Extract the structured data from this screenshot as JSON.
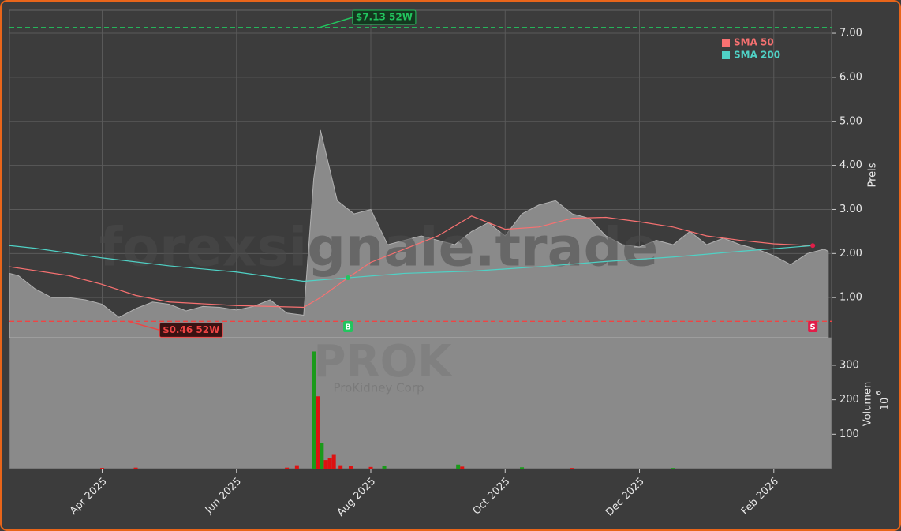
{
  "chart_data": {
    "type": "stock",
    "watermark": "forexsignale.trade",
    "symbol": "PROK",
    "company": "ProKidney Corp",
    "ylabel": "Preis",
    "y2label": "Volumen",
    "y2unit": "10",
    "y2exp": "6",
    "xlim": [
      1.62,
      13.86
    ],
    "xticks": [
      {
        "value": 3,
        "label": "Apr 2025"
      },
      {
        "value": 5,
        "label": "Jun 2025"
      },
      {
        "value": 7,
        "label": "Aug 2025"
      },
      {
        "value": 9,
        "label": "Oct 2025"
      },
      {
        "value": 11,
        "label": "Dec 2025"
      },
      {
        "value": 13,
        "label": "Feb 2026"
      }
    ],
    "ylim": [
      0.09,
      7.52
    ],
    "yticks": [
      {
        "value": 1,
        "label": "1.00"
      },
      {
        "value": 2,
        "label": "2.00"
      },
      {
        "value": 3,
        "label": "3.00"
      },
      {
        "value": 4,
        "label": "4.00"
      },
      {
        "value": 5,
        "label": "5.00"
      },
      {
        "value": 6,
        "label": "6.00"
      },
      {
        "value": 7,
        "label": "7.00"
      }
    ],
    "y2lim": [
      0,
      380
    ],
    "y2ticks": [
      100,
      200,
      300
    ],
    "grid": true,
    "price": {
      "color": "#8a8a8a",
      "x": [
        1.62,
        1.75,
        2.0,
        2.25,
        2.5,
        2.75,
        3.0,
        3.25,
        3.5,
        3.75,
        4.0,
        4.25,
        4.5,
        4.75,
        5.0,
        5.25,
        5.5,
        5.75,
        6.0,
        6.15,
        6.25,
        6.5,
        6.75,
        7.0,
        7.25,
        7.5,
        7.75,
        8.0,
        8.25,
        8.5,
        8.75,
        9.0,
        9.25,
        9.5,
        9.75,
        10.0,
        10.25,
        10.5,
        10.75,
        11.0,
        11.25,
        11.5,
        11.75,
        12.0,
        12.25,
        12.5,
        12.75,
        13.0,
        13.25,
        13.5,
        13.75,
        13.81
      ],
      "values": [
        1.55,
        1.5,
        1.2,
        1.0,
        1.0,
        0.95,
        0.85,
        0.55,
        0.75,
        0.9,
        0.85,
        0.7,
        0.8,
        0.78,
        0.72,
        0.8,
        0.95,
        0.65,
        0.6,
        3.7,
        4.8,
        3.2,
        2.9,
        3.0,
        2.2,
        2.3,
        2.4,
        2.3,
        2.2,
        2.5,
        2.7,
        2.4,
        2.9,
        3.1,
        3.2,
        2.9,
        2.8,
        2.4,
        2.2,
        2.15,
        2.3,
        2.2,
        2.5,
        2.2,
        2.35,
        2.2,
        2.1,
        1.95,
        1.75,
        2.0,
        2.1,
        2.05
      ]
    },
    "series": [
      {
        "name": "SMA 50",
        "color": "#f87171",
        "x": [
          1.62,
          2.5,
          3.0,
          3.5,
          4.0,
          5.0,
          6.0,
          6.25,
          6.66,
          7.0,
          7.5,
          8.0,
          8.5,
          9.0,
          9.5,
          10.0,
          10.5,
          11.0,
          11.5,
          12.0,
          12.5,
          13.0,
          13.58
        ],
        "values": [
          1.7,
          1.5,
          1.3,
          1.05,
          0.9,
          0.82,
          0.78,
          1.0,
          1.45,
          1.8,
          2.1,
          2.4,
          2.85,
          2.55,
          2.6,
          2.8,
          2.82,
          2.72,
          2.6,
          2.4,
          2.3,
          2.22,
          2.18
        ]
      },
      {
        "name": "SMA 200",
        "color": "#4fd1c5",
        "x": [
          1.62,
          2.0,
          3.0,
          4.0,
          5.0,
          6.0,
          6.66,
          7.5,
          8.5,
          9.5,
          10.5,
          11.5,
          12.5,
          13.58
        ],
        "values": [
          2.18,
          2.12,
          1.9,
          1.72,
          1.58,
          1.37,
          1.45,
          1.55,
          1.6,
          1.7,
          1.82,
          1.92,
          2.05,
          2.18
        ]
      }
    ],
    "annotations": [
      {
        "label": "$7.13 52W",
        "value": 7.13,
        "x": 6.2,
        "color": "#22c55e"
      },
      {
        "label": "$0.46 52W",
        "value": 0.46,
        "x": 3.35,
        "color": "#ef4444"
      }
    ],
    "signals": [
      {
        "label": "B",
        "x": 6.66,
        "value": 1.45,
        "color": "#22c55e"
      },
      {
        "label": "S",
        "x": 13.58,
        "value": 2.18,
        "color": "#e11d48"
      }
    ],
    "volume": {
      "x": [
        3.0,
        3.5,
        5.75,
        5.9,
        6.15,
        6.21,
        6.27,
        6.33,
        6.39,
        6.45,
        6.55,
        6.7,
        7.0,
        7.2,
        8.3,
        8.36,
        9.25,
        10.0,
        11.5
      ],
      "values": [
        2,
        3,
        3,
        10,
        340,
        210,
        75,
        25,
        30,
        40,
        10,
        8,
        5,
        8,
        12,
        6,
        4,
        2,
        2
      ],
      "colors": [
        "#dd1111",
        "#dd1111",
        "#dd1111",
        "#dd1111",
        "#1a9a1a",
        "#dd1111",
        "#1a9a1a",
        "#dd1111",
        "#dd1111",
        "#dd1111",
        "#dd1111",
        "#dd1111",
        "#dd1111",
        "#1a9a1a",
        "#1a9a1a",
        "#dd1111",
        "#1a9a1a",
        "#dd1111",
        "#1a9a1a"
      ]
    }
  }
}
